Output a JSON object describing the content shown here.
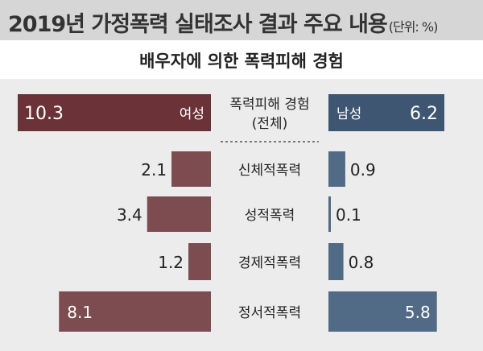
{
  "header": {
    "title": "2019년 가정폭력 실태조사 결과 주요 내용",
    "unit": "(단위: %)"
  },
  "subtitle": "배우자에 의한 폭력피해 경험",
  "colors": {
    "female": "#6b3337",
    "female_light": "#7d4c50",
    "male": "#3e5671",
    "male_light": "#516a85"
  },
  "chart_data": {
    "type": "bar",
    "orientation": "horizontal-butterfly",
    "title": "배우자에 의한 폭력피해 경험",
    "unit": "%",
    "categories": [
      "폭력피해 경험\n(전체)",
      "신체적폭력",
      "성적폭력",
      "경제적폭력",
      "정서적폭력"
    ],
    "series": [
      {
        "name": "여성",
        "side": "left",
        "values": [
          10.3,
          2.1,
          3.4,
          1.2,
          8.1
        ]
      },
      {
        "name": "남성",
        "side": "right",
        "values": [
          6.2,
          0.9,
          0.1,
          0.8,
          5.8
        ]
      }
    ],
    "value_labels": {
      "female": [
        "10.3",
        "2.1",
        "3.4",
        "1.2",
        "8.1"
      ],
      "male": [
        "6.2",
        "0.9",
        "0.1",
        "0.8",
        "5.8"
      ]
    }
  }
}
